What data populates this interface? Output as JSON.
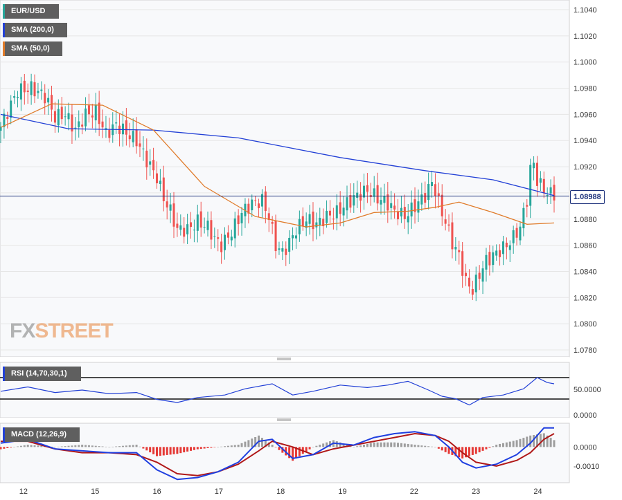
{
  "legend": {
    "main_label": "EUR/USD",
    "sma200_label": "SMA (200,0)",
    "sma50_label": "SMA (50,0)",
    "rsi_label": "RSI (14,70,30,1)",
    "macd_label": "MACD (12,26,9)"
  },
  "watermark": {
    "fx": "FX",
    "street": "STREET"
  },
  "current_price_label": "1.08988",
  "colors": {
    "bull": "#26a69a",
    "bear": "#ef5350",
    "sma200": "#2240d6",
    "sma50": "#e07b2a",
    "macd_line": "#1f3fe0",
    "signal_line": "#b01818",
    "hist_pos": "#9e9e9e",
    "hist_neg": "#e53935",
    "rsi_line": "#2240d6",
    "legend_bg": "#5f5f5f",
    "grid": "#e6e6e6"
  },
  "chart_data": [
    {
      "type": "candlestick",
      "title": "EUR/USD",
      "x_tick_labels": [
        "12",
        "15",
        "16",
        "17",
        "18",
        "19",
        "22",
        "23",
        "24"
      ],
      "y_tick_labels": [
        "1.1040",
        "1.1020",
        "1.1000",
        "1.0980",
        "1.0960",
        "1.0940",
        "1.0920",
        "1.0900",
        "1.0880",
        "1.0860",
        "1.0840",
        "1.0820",
        "1.0800",
        "1.0780"
      ],
      "ylim": [
        1.0772,
        1.1052
      ],
      "current_price": 1.08988,
      "grid": true,
      "price_path": [
        [
          0,
          1.0945
        ],
        [
          3,
          1.0962
        ],
        [
          6,
          1.0978
        ],
        [
          10,
          1.098
        ],
        [
          14,
          1.0974
        ],
        [
          17,
          1.0958
        ],
        [
          20,
          1.096
        ],
        [
          23,
          1.0948
        ],
        [
          26,
          1.096
        ],
        [
          29,
          1.0962
        ],
        [
          32,
          1.0945
        ],
        [
          35,
          1.0952
        ],
        [
          38,
          1.0946
        ],
        [
          41,
          1.094
        ],
        [
          44,
          1.0925
        ],
        [
          47,
          1.0912
        ],
        [
          49,
          1.0896
        ],
        [
          51,
          1.0886
        ],
        [
          53,
          1.0872
        ],
        [
          56,
          1.0872
        ],
        [
          59,
          1.0878
        ],
        [
          62,
          1.0874
        ],
        [
          64,
          1.0865
        ],
        [
          66,
          1.086
        ],
        [
          69,
          1.087
        ],
        [
          72,
          1.0885
        ],
        [
          75,
          1.0892
        ],
        [
          78,
          1.0894
        ],
        [
          80,
          1.0882
        ],
        [
          82,
          1.086
        ],
        [
          84,
          1.0854
        ],
        [
          86,
          1.0862
        ],
        [
          88,
          1.0872
        ],
        [
          91,
          1.088
        ],
        [
          94,
          1.0876
        ],
        [
          97,
          1.0882
        ],
        [
          100,
          1.0885
        ],
        [
          103,
          1.0892
        ],
        [
          106,
          1.0898
        ],
        [
          109,
          1.0902
        ],
        [
          112,
          1.0896
        ],
        [
          115,
          1.0892
        ],
        [
          117,
          1.0886
        ],
        [
          120,
          1.0882
        ],
        [
          123,
          1.089
        ],
        [
          126,
          1.0898
        ],
        [
          128,
          1.0908
        ],
        [
          129,
          1.0902
        ],
        [
          130,
          1.0892
        ],
        [
          132,
          1.0878
        ],
        [
          134,
          1.0862
        ],
        [
          136,
          1.0852
        ],
        [
          138,
          1.0832
        ],
        [
          140,
          1.0826
        ],
        [
          142,
          1.0838
        ],
        [
          144,
          1.0848
        ],
        [
          146,
          1.0852
        ],
        [
          148,
          1.0856
        ],
        [
          150,
          1.086
        ],
        [
          152,
          1.0866
        ],
        [
          154,
          1.0874
        ],
        [
          156,
          1.0895
        ],
        [
          157,
          1.0918
        ],
        [
          158,
          1.0922
        ],
        [
          159,
          1.091
        ],
        [
          161,
          1.0902
        ],
        [
          163,
          1.0899
        ]
      ],
      "series": [
        {
          "name": "SMA (200,0)",
          "points": [
            [
              0,
              1.096
            ],
            [
              20,
              1.0949
            ],
            [
              45,
              1.0948
            ],
            [
              70,
              1.0942
            ],
            [
              100,
              1.0927
            ],
            [
              125,
              1.0917
            ],
            [
              145,
              1.091
            ],
            [
              163,
              1.0898
            ]
          ]
        },
        {
          "name": "SMA (50,0)",
          "points": [
            [
              0,
              1.095
            ],
            [
              15,
              1.0968
            ],
            [
              30,
              1.0967
            ],
            [
              45,
              1.0948
            ],
            [
              60,
              1.0905
            ],
            [
              75,
              1.0882
            ],
            [
              90,
              1.0874
            ],
            [
              100,
              1.0877
            ],
            [
              110,
              1.0885
            ],
            [
              120,
              1.0886
            ],
            [
              128,
              1.0889
            ],
            [
              135,
              1.0893
            ],
            [
              145,
              1.0885
            ],
            [
              155,
              1.0876
            ],
            [
              163,
              1.0877
            ]
          ]
        }
      ]
    },
    {
      "type": "line",
      "title": "RSI (14,70,30,1)",
      "y_tick_labels": [
        "50.0000"
      ],
      "reference_levels": [
        70,
        30
      ],
      "ylim": [
        10,
        90
      ],
      "series": [
        {
          "name": "RSI (14,70,30,1)",
          "points": [
            [
              0,
              48
            ],
            [
              8,
              55
            ],
            [
              16,
              46
            ],
            [
              24,
              50
            ],
            [
              32,
              44
            ],
            [
              40,
              46
            ],
            [
              46,
              35
            ],
            [
              52,
              30
            ],
            [
              58,
              38
            ],
            [
              66,
              42
            ],
            [
              72,
              52
            ],
            [
              80,
              60
            ],
            [
              86,
              42
            ],
            [
              92,
              48
            ],
            [
              100,
              58
            ],
            [
              108,
              54
            ],
            [
              114,
              58
            ],
            [
              120,
              64
            ],
            [
              126,
              50
            ],
            [
              130,
              40
            ],
            [
              134,
              36
            ],
            [
              138,
              26
            ],
            [
              142,
              38
            ],
            [
              148,
              42
            ],
            [
              154,
              52
            ],
            [
              158,
              70
            ],
            [
              161,
              62
            ],
            [
              163,
              60
            ]
          ]
        }
      ]
    },
    {
      "type": "line",
      "title": "MACD (12,26,9)",
      "y_tick_labels": [
        "0.0000",
        "-0.0010"
      ],
      "ylim": [
        -0.0018,
        0.0011
      ],
      "series": [
        {
          "name": "MACD",
          "points": [
            [
              0,
              0.0002
            ],
            [
              8,
              0.0004
            ],
            [
              16,
              -0.0001
            ],
            [
              24,
              -0.0002
            ],
            [
              32,
              -0.0003
            ],
            [
              40,
              -0.0003
            ],
            [
              46,
              -0.0012
            ],
            [
              52,
              -0.0017
            ],
            [
              58,
              -0.0016
            ],
            [
              64,
              -0.0013
            ],
            [
              70,
              -0.0008
            ],
            [
              76,
              0.0003
            ],
            [
              80,
              0.0004
            ],
            [
              86,
              -0.0006
            ],
            [
              92,
              -0.0004
            ],
            [
              98,
              0.0002
            ],
            [
              104,
              0.0001
            ],
            [
              110,
              0.0005
            ],
            [
              116,
              0.0007
            ],
            [
              122,
              0.0008
            ],
            [
              128,
              0.0006
            ],
            [
              132,
              0.0
            ],
            [
              136,
              -0.0008
            ],
            [
              140,
              -0.0011
            ],
            [
              146,
              -0.0009
            ],
            [
              152,
              -0.0004
            ],
            [
              156,
              0.0002
            ],
            [
              160,
              0.001
            ],
            [
              163,
              0.001
            ]
          ]
        },
        {
          "name": "Signal",
          "points": [
            [
              0,
              0.0003
            ],
            [
              8,
              0.0003
            ],
            [
              16,
              -0.0001
            ],
            [
              24,
              -0.0003
            ],
            [
              32,
              -0.0003
            ],
            [
              40,
              -0.0004
            ],
            [
              46,
              -0.0008
            ],
            [
              52,
              -0.0014
            ],
            [
              58,
              -0.0015
            ],
            [
              64,
              -0.0013
            ],
            [
              70,
              -0.0009
            ],
            [
              76,
              -0.0002
            ],
            [
              80,
              0.0003
            ],
            [
              86,
              0.0
            ],
            [
              92,
              -0.0004
            ],
            [
              98,
              -0.0001
            ],
            [
              104,
              0.0001
            ],
            [
              110,
              0.0003
            ],
            [
              116,
              0.0005
            ],
            [
              122,
              0.0007
            ],
            [
              128,
              0.0006
            ],
            [
              132,
              0.0003
            ],
            [
              136,
              -0.0003
            ],
            [
              140,
              -0.0008
            ],
            [
              146,
              -0.001
            ],
            [
              152,
              -0.0007
            ],
            [
              156,
              -0.0003
            ],
            [
              160,
              0.0004
            ],
            [
              163,
              0.0007
            ]
          ]
        }
      ]
    }
  ]
}
